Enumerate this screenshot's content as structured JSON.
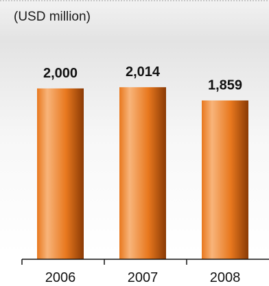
{
  "unit_label": "(USD million)",
  "colors": {
    "bar_light": "#f8b47a",
    "bar_mid": "#e8781e",
    "bar_dark": "#8a3a05",
    "axis": "#111111"
  },
  "chart_data": {
    "type": "bar",
    "title": "",
    "ylabel": "(USD million)",
    "categories": [
      "2006",
      "2007",
      "2008"
    ],
    "values": [
      2000,
      2014,
      1859
    ],
    "value_labels": [
      "2,000",
      "2,014",
      "1,859"
    ],
    "ylim": [
      0,
      2200
    ],
    "grid": false,
    "legend": "none"
  }
}
